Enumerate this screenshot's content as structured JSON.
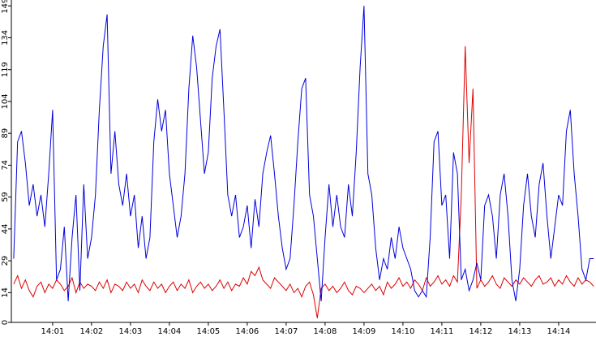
{
  "chart_data": {
    "type": "line",
    "x": [
      0,
      0.1,
      0.2,
      0.3,
      0.4,
      0.5,
      0.6,
      0.7,
      0.8,
      0.9,
      1,
      1.1,
      1.2,
      1.3,
      1.4,
      1.5,
      1.6,
      1.7,
      1.8,
      1.9,
      2,
      2.1,
      2.2,
      2.3,
      2.4,
      2.5,
      2.6,
      2.7,
      2.8,
      2.9,
      3,
      3.1,
      3.2,
      3.3,
      3.4,
      3.5,
      3.6,
      3.7,
      3.8,
      3.9,
      4,
      4.1,
      4.2,
      4.3,
      4.4,
      4.5,
      4.6,
      4.7,
      4.8,
      4.9,
      5,
      5.1,
      5.2,
      5.3,
      5.4,
      5.5,
      5.6,
      5.7,
      5.8,
      5.9,
      6,
      6.1,
      6.2,
      6.3,
      6.4,
      6.5,
      6.6,
      6.7,
      6.8,
      6.9,
      7,
      7.1,
      7.2,
      7.3,
      7.4,
      7.5,
      7.6,
      7.7,
      7.8,
      7.9,
      8,
      8.1,
      8.2,
      8.3,
      8.4,
      8.5,
      8.6,
      8.7,
      8.8,
      8.9,
      9,
      9.1,
      9.2,
      9.3,
      9.4,
      9.5,
      9.6,
      9.7,
      9.8,
      9.9,
      10,
      10.1,
      10.2,
      10.3,
      10.4,
      10.5,
      10.6,
      10.7,
      10.8,
      10.9,
      11,
      11.1,
      11.2,
      11.3,
      11.4,
      11.5,
      11.6,
      11.7,
      11.8,
      11.9,
      12,
      12.1,
      12.2,
      12.3,
      12.4,
      12.5,
      12.6,
      12.7,
      12.8,
      12.9,
      13,
      13.1,
      13.2,
      13.3,
      13.4,
      13.5,
      13.6,
      13.7,
      13.8,
      13.9,
      14,
      14.1,
      14.2,
      14.3,
      14.4,
      14.5,
      14.6,
      14.7,
      14.8,
      14.9
    ],
    "series": [
      {
        "color": "#0000dd",
        "values": [
          30,
          85,
          90,
          75,
          55,
          65,
          50,
          60,
          45,
          70,
          100,
          20,
          25,
          45,
          10,
          40,
          60,
          15,
          65,
          30,
          40,
          60,
          100,
          130,
          145,
          70,
          90,
          65,
          55,
          70,
          50,
          60,
          35,
          50,
          30,
          40,
          85,
          105,
          90,
          100,
          70,
          55,
          40,
          50,
          70,
          110,
          135,
          120,
          95,
          70,
          80,
          115,
          130,
          138,
          100,
          60,
          50,
          60,
          40,
          45,
          55,
          35,
          58,
          45,
          70,
          80,
          88,
          70,
          50,
          35,
          25,
          30,
          55,
          85,
          110,
          115,
          60,
          50,
          30,
          10,
          40,
          65,
          45,
          60,
          45,
          40,
          65,
          50,
          80,
          120,
          149,
          70,
          60,
          35,
          20,
          30,
          25,
          40,
          30,
          45,
          35,
          30,
          25,
          15,
          12,
          15,
          12,
          40,
          85,
          90,
          55,
          60,
          30,
          80,
          70,
          20,
          25,
          15,
          20,
          28,
          20,
          55,
          60,
          50,
          30,
          60,
          70,
          50,
          20,
          10,
          25,
          55,
          70,
          50,
          40,
          65,
          75,
          50,
          30,
          45,
          60,
          55,
          90,
          100,
          70,
          50,
          25,
          20,
          30,
          30
        ]
      },
      {
        "color": "#dd0000",
        "values": [
          18,
          22,
          16,
          20,
          15,
          12,
          17,
          19,
          14,
          18,
          16,
          20,
          18,
          15,
          17,
          21,
          14,
          19,
          16,
          18,
          17,
          15,
          19,
          16,
          20,
          14,
          18,
          17,
          15,
          19,
          16,
          18,
          14,
          20,
          17,
          15,
          19,
          16,
          18,
          14,
          17,
          19,
          15,
          18,
          16,
          20,
          14,
          17,
          19,
          16,
          18,
          15,
          17,
          20,
          16,
          19,
          15,
          18,
          17,
          21,
          18,
          24,
          22,
          26,
          20,
          18,
          16,
          21,
          19,
          17,
          15,
          18,
          14,
          16,
          12,
          17,
          19,
          13,
          2,
          16,
          18,
          15,
          17,
          14,
          16,
          19,
          15,
          13,
          17,
          16,
          14,
          16,
          18,
          15,
          17,
          13,
          19,
          16,
          18,
          21,
          17,
          19,
          16,
          20,
          18,
          15,
          21,
          17,
          19,
          22,
          18,
          20,
          17,
          22,
          19,
          60,
          130,
          75,
          110,
          16,
          20,
          17,
          19,
          22,
          18,
          16,
          21,
          19,
          17,
          20,
          18,
          21,
          19,
          17,
          20,
          22,
          18,
          19,
          21,
          17,
          20,
          18,
          22,
          19,
          17,
          21,
          18,
          20,
          19,
          17
        ]
      }
    ],
    "xlim": [
      -0.06,
      14.96
    ],
    "xticks": [
      {
        "value": 1,
        "label": "14:01"
      },
      {
        "value": 2,
        "label": "14:02"
      },
      {
        "value": 3,
        "label": "14:03"
      },
      {
        "value": 4,
        "label": "14:04"
      },
      {
        "value": 5,
        "label": "14:05"
      },
      {
        "value": 6,
        "label": "14:06"
      },
      {
        "value": 7,
        "label": "14:07"
      },
      {
        "value": 8,
        "label": "14:08"
      },
      {
        "value": 9,
        "label": "14:09"
      },
      {
        "value": 10,
        "label": "14:10"
      },
      {
        "value": 11,
        "label": "14:11"
      },
      {
        "value": 12,
        "label": "14:12"
      },
      {
        "value": 13,
        "label": "14:13"
      },
      {
        "value": 14,
        "label": "14:14"
      }
    ],
    "ylim": [
      0,
      151
    ],
    "yticks": [
      0,
      14,
      29,
      44,
      59,
      74,
      89,
      104,
      119,
      134,
      149
    ]
  }
}
